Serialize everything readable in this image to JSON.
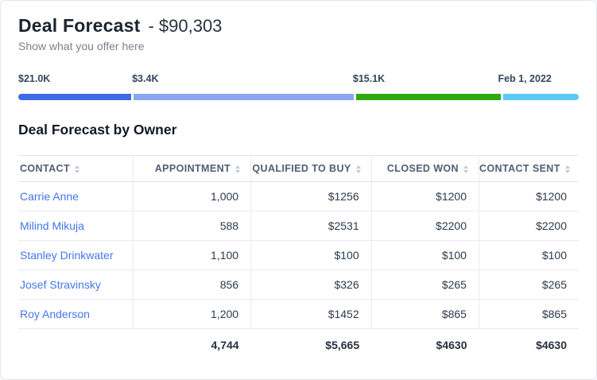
{
  "header": {
    "title": "Deal Forecast",
    "amount_text": "- $90,303",
    "subtitle": "Show what you offer here"
  },
  "progress": {
    "segments": [
      {
        "label": "$21.0K",
        "color": "#3d6be6",
        "width_pct": 20.3
      },
      {
        "label": "$3.4K",
        "color": "#8ba6f0",
        "width_pct": 39.4
      },
      {
        "label": "$15.1K",
        "color": "#2fa90f",
        "width_pct": 25.9
      },
      {
        "label": "Feb 1, 2022",
        "color": "#5dc9f6",
        "width_pct": 13.6
      }
    ]
  },
  "table": {
    "title": "Deal Forecast by Owner",
    "link_color": "#4476e8",
    "columns": [
      "CONTACT",
      "APPOINTMENT",
      "QUALIFIED TO BUY",
      "CLOSED WON",
      "CONTACT SENT"
    ],
    "rows": [
      {
        "contact": "Carrie Anne",
        "appointment": "1,000",
        "qualified": "$1256",
        "closed": "$1200",
        "sent": "$1200"
      },
      {
        "contact": "Milind Mikuja",
        "appointment": "588",
        "qualified": "$2531",
        "closed": "$2200",
        "sent": "$2200"
      },
      {
        "contact": "Stanley Drinkwater",
        "appointment": "1,100",
        "qualified": "$100",
        "closed": "$100",
        "sent": "$100"
      },
      {
        "contact": "Josef Stravinsky",
        "appointment": "856",
        "qualified": "$326",
        "closed": "$265",
        "sent": "$265"
      },
      {
        "contact": "Roy Anderson",
        "appointment": "1,200",
        "qualified": "$1452",
        "closed": "$865",
        "sent": "$865"
      }
    ],
    "totals": {
      "appointment": "4,744",
      "qualified": "$5,665",
      "closed": "$4630",
      "sent": "$4630"
    }
  }
}
